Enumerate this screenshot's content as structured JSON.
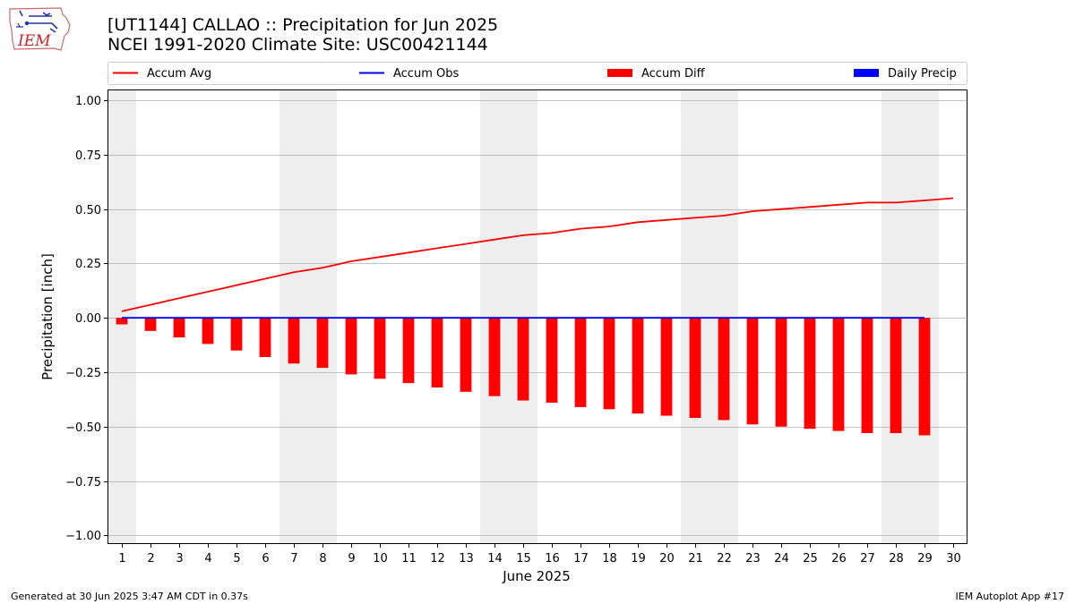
{
  "header": {
    "title_line1": "[UT1144] CALLAO :: Precipitation for Jun 2025",
    "title_line2": "NCEI 1991-2020 Climate Site: USC00421144"
  },
  "logo": {
    "text": "IEM",
    "icon": "iem-iowa-logo-icon"
  },
  "footer": {
    "generated": "Generated at 30 Jun 2025 3:47 AM CDT in 0.37s",
    "app": "IEM Autoplot App #17"
  },
  "colors": {
    "accum_avg": "#ff0000",
    "accum_obs": "#0000ff",
    "accum_diff": "#ff0000",
    "daily_precip": "#0000ff",
    "weekend_shade": "#eeeeee",
    "grid": "#b0b0b0"
  },
  "chart_data": {
    "type": "bar",
    "title": "[UT1144] CALLAO :: Precipitation for Jun 2025",
    "subtitle": "NCEI 1991-2020 Climate Site: USC00421144",
    "xlabel": "June 2025",
    "ylabel": "Precipitation [inch]",
    "ylim": [
      -1.04,
      1.05
    ],
    "xlim": [
      0.5,
      30.5
    ],
    "yticks": [
      -1.0,
      -0.75,
      -0.5,
      -0.25,
      0.0,
      0.25,
      0.5,
      0.75,
      1.0
    ],
    "ytick_labels": [
      "−1.00",
      "−0.75",
      "−0.50",
      "−0.25",
      "0.00",
      "0.25",
      "0.50",
      "0.75",
      "1.00"
    ],
    "xticks": [
      1,
      2,
      3,
      4,
      5,
      6,
      7,
      8,
      9,
      10,
      11,
      12,
      13,
      14,
      15,
      16,
      17,
      18,
      19,
      20,
      21,
      22,
      23,
      24,
      25,
      26,
      27,
      28,
      29,
      30
    ],
    "xtick_labels": [
      "1",
      "2",
      "3",
      "4",
      "5",
      "6",
      "7",
      "8",
      "9",
      "10",
      "11",
      "12",
      "13",
      "14",
      "15",
      "16",
      "17",
      "18",
      "19",
      "20",
      "21",
      "22",
      "23",
      "24",
      "25",
      "26",
      "27",
      "28",
      "29",
      "30"
    ],
    "grid": "y-major",
    "legend_position": "top",
    "weekend_bands": [
      [
        0.5,
        1.5
      ],
      [
        6.5,
        8.5
      ],
      [
        13.5,
        15.5
      ],
      [
        20.5,
        22.5
      ],
      [
        27.5,
        29.5
      ]
    ],
    "series": [
      {
        "name": "Accum Avg",
        "type": "line",
        "x": [
          1,
          2,
          3,
          4,
          5,
          6,
          7,
          8,
          9,
          10,
          11,
          12,
          13,
          14,
          15,
          16,
          17,
          18,
          19,
          20,
          21,
          22,
          23,
          24,
          25,
          26,
          27,
          28,
          29,
          30
        ],
        "values": [
          0.03,
          0.06,
          0.09,
          0.12,
          0.15,
          0.18,
          0.21,
          0.23,
          0.26,
          0.28,
          0.3,
          0.32,
          0.34,
          0.36,
          0.38,
          0.39,
          0.41,
          0.42,
          0.44,
          0.45,
          0.46,
          0.47,
          0.49,
          0.5,
          0.51,
          0.52,
          0.53,
          0.53,
          0.54,
          0.55
        ]
      },
      {
        "name": "Accum Obs",
        "type": "line",
        "x": [
          1,
          2,
          3,
          4,
          5,
          6,
          7,
          8,
          9,
          10,
          11,
          12,
          13,
          14,
          15,
          16,
          17,
          18,
          19,
          20,
          21,
          22,
          23,
          24,
          25,
          26,
          27,
          28,
          29
        ],
        "values": [
          0,
          0,
          0,
          0,
          0,
          0,
          0,
          0,
          0,
          0,
          0,
          0,
          0,
          0,
          0,
          0,
          0,
          0,
          0,
          0,
          0,
          0,
          0,
          0,
          0,
          0,
          0,
          0,
          0
        ]
      },
      {
        "name": "Accum Diff",
        "type": "bar",
        "x": [
          1,
          2,
          3,
          4,
          5,
          6,
          7,
          8,
          9,
          10,
          11,
          12,
          13,
          14,
          15,
          16,
          17,
          18,
          19,
          20,
          21,
          22,
          23,
          24,
          25,
          26,
          27,
          28,
          29
        ],
        "values": [
          -0.03,
          -0.06,
          -0.09,
          -0.12,
          -0.15,
          -0.18,
          -0.21,
          -0.23,
          -0.26,
          -0.28,
          -0.3,
          -0.32,
          -0.34,
          -0.36,
          -0.38,
          -0.39,
          -0.41,
          -0.42,
          -0.44,
          -0.45,
          -0.46,
          -0.47,
          -0.49,
          -0.5,
          -0.51,
          -0.52,
          -0.53,
          -0.53,
          -0.54
        ]
      },
      {
        "name": "Daily Precip",
        "type": "bar",
        "x": [
          1,
          2,
          3,
          4,
          5,
          6,
          7,
          8,
          9,
          10,
          11,
          12,
          13,
          14,
          15,
          16,
          17,
          18,
          19,
          20,
          21,
          22,
          23,
          24,
          25,
          26,
          27,
          28,
          29
        ],
        "values": [
          0,
          0,
          0,
          0,
          0,
          0,
          0,
          0,
          0,
          0,
          0,
          0,
          0,
          0,
          0,
          0,
          0,
          0,
          0,
          0,
          0,
          0,
          0,
          0,
          0,
          0,
          0,
          0,
          0
        ]
      }
    ]
  }
}
